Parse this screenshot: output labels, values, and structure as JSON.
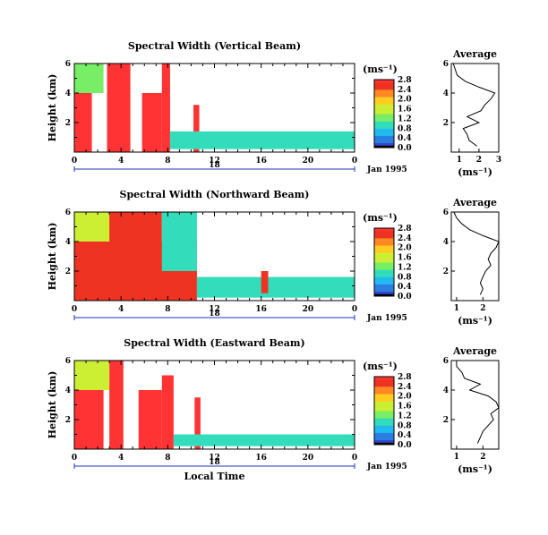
{
  "chart_data": [
    {
      "type": "heatmap",
      "title": "Spectral Width (Vertical Beam)",
      "ylabel": "Height (km)",
      "xlabel": "",
      "date_label": "18",
      "month_label": "Jan 1995",
      "x_ticks": [
        "0",
        "4",
        "8",
        "12",
        "16",
        "20",
        "0"
      ],
      "y_ticks": [
        "2",
        "4",
        "6"
      ],
      "xlim": [
        0,
        24
      ],
      "ylim": [
        0,
        6
      ],
      "colorbar": {
        "unit": "(ms⁻¹)",
        "ticks": [
          "0.0",
          "0.4",
          "0.8",
          "1.2",
          "1.6",
          "2.0",
          "2.4",
          "2.8"
        ],
        "range": [
          0,
          2.8
        ]
      },
      "cells": [
        {
          "x": [
            0,
            1.5
          ],
          "y": [
            0,
            4.0
          ],
          "value": 2.8
        },
        {
          "x": [
            0,
            2.5
          ],
          "y": [
            4.0,
            6.0
          ],
          "value": 1.3
        },
        {
          "x": [
            2.8,
            4.8
          ],
          "y": [
            0,
            6.0
          ],
          "value": 2.8
        },
        {
          "x": [
            5.8,
            7.5
          ],
          "y": [
            0,
            4.0
          ],
          "value": 2.8
        },
        {
          "x": [
            7.5,
            8.2
          ],
          "y": [
            0,
            6.0
          ],
          "value": 2.8
        },
        {
          "x": [
            10.2,
            10.7
          ],
          "y": [
            0,
            3.2
          ],
          "value": 2.8
        },
        {
          "x": [
            8.2,
            24
          ],
          "y": [
            0.2,
            1.4
          ],
          "value": 1.0
        }
      ],
      "average_profile": {
        "title": "Average",
        "xlabel": "(ms⁻¹)",
        "x_ticks": [
          "1",
          "2",
          "3"
        ],
        "xlim": [
          0.6,
          3.0
        ],
        "y_ticks": [
          "2",
          "4",
          "6"
        ],
        "ylim": [
          0,
          6
        ],
        "height_km": [
          0.4,
          0.8,
          1.2,
          1.6,
          2.0,
          2.4,
          2.8,
          3.2,
          3.6,
          4.0,
          4.4,
          4.8,
          5.2,
          5.6,
          6.0
        ],
        "width_ms": [
          1.9,
          1.5,
          1.4,
          1.2,
          2.0,
          1.4,
          2.1,
          2.3,
          2.6,
          2.8,
          2.0,
          1.3,
          0.9,
          0.8,
          0.7
        ]
      }
    },
    {
      "type": "heatmap",
      "title": "Spectral Width (Northward Beam)",
      "ylabel": "Height (km)",
      "xlabel": "",
      "date_label": "18",
      "month_label": "Jan 1995",
      "x_ticks": [
        "0",
        "4",
        "8",
        "12",
        "16",
        "20",
        "0"
      ],
      "y_ticks": [
        "2",
        "4",
        "6"
      ],
      "xlim": [
        0,
        24
      ],
      "ylim": [
        0,
        6
      ],
      "colorbar": {
        "unit": "(ms⁻¹)",
        "ticks": [
          "0.0",
          "0.4",
          "0.8",
          "1.2",
          "1.6",
          "2.0",
          "2.4",
          "2.8"
        ],
        "range": [
          0,
          2.8
        ]
      },
      "cells": [
        {
          "x": [
            0,
            10.5
          ],
          "y": [
            0,
            4.0
          ],
          "value": 2.4
        },
        {
          "x": [
            0,
            3.0
          ],
          "y": [
            4.0,
            6.0
          ],
          "value": 1.4
        },
        {
          "x": [
            3.0,
            7.5
          ],
          "y": [
            0,
            6.0
          ],
          "value": 2.6
        },
        {
          "x": [
            7.5,
            10.5
          ],
          "y": [
            2.0,
            6.0
          ],
          "value": 1.0
        },
        {
          "x": [
            10.5,
            24
          ],
          "y": [
            0.2,
            1.6
          ],
          "value": 1.0
        },
        {
          "x": [
            16.0,
            16.6
          ],
          "y": [
            0.5,
            2.0
          ],
          "value": 2.4
        }
      ],
      "average_profile": {
        "title": "Average",
        "xlabel": "(ms⁻¹)",
        "x_ticks": [
          "1",
          "2"
        ],
        "xlim": [
          0.8,
          2.6
        ],
        "y_ticks": [
          "2",
          "4",
          "6"
        ],
        "ylim": [
          0,
          6
        ],
        "height_km": [
          0.4,
          0.8,
          1.2,
          1.6,
          2.0,
          2.4,
          2.8,
          3.2,
          3.6,
          4.0,
          4.4,
          4.8,
          5.2,
          5.6,
          6.0
        ],
        "width_ms": [
          1.9,
          2.0,
          1.9,
          2.0,
          2.1,
          2.3,
          2.2,
          2.3,
          2.5,
          2.6,
          2.0,
          1.5,
          1.2,
          1.0,
          0.9
        ]
      }
    },
    {
      "type": "heatmap",
      "title": "Spectral Width (Eastward Beam)",
      "ylabel": "Height (km)",
      "xlabel": "Local Time",
      "date_label": "18",
      "month_label": "Jan 1995",
      "x_ticks": [
        "0",
        "4",
        "8",
        "12",
        "16",
        "20",
        "0"
      ],
      "y_ticks": [
        "2",
        "4",
        "6"
      ],
      "xlim": [
        0,
        24
      ],
      "ylim": [
        0,
        6
      ],
      "colorbar": {
        "unit": "(ms⁻¹)",
        "ticks": [
          "0.0",
          "0.4",
          "0.8",
          "1.2",
          "1.6",
          "2.0",
          "2.4",
          "2.8"
        ],
        "range": [
          0,
          2.8
        ]
      },
      "cells": [
        {
          "x": [
            0,
            2.5
          ],
          "y": [
            0,
            4.0
          ],
          "value": 2.8
        },
        {
          "x": [
            0,
            3.0
          ],
          "y": [
            4.0,
            6.0
          ],
          "value": 1.4
        },
        {
          "x": [
            3.0,
            4.2
          ],
          "y": [
            0,
            6.0
          ],
          "value": 2.8
        },
        {
          "x": [
            5.5,
            7.5
          ],
          "y": [
            0,
            4.0
          ],
          "value": 2.8
        },
        {
          "x": [
            7.5,
            8.5
          ],
          "y": [
            0,
            5.0
          ],
          "value": 2.8
        },
        {
          "x": [
            10.3,
            10.8
          ],
          "y": [
            0,
            3.5
          ],
          "value": 2.8
        },
        {
          "x": [
            8.5,
            24
          ],
          "y": [
            0.2,
            1.0
          ],
          "value": 0.9
        }
      ],
      "average_profile": {
        "title": "Average",
        "xlabel": "(ms⁻¹)",
        "x_ticks": [
          "1",
          "2"
        ],
        "xlim": [
          0.8,
          2.6
        ],
        "y_ticks": [
          "2",
          "4",
          "6"
        ],
        "ylim": [
          0,
          6
        ],
        "height_km": [
          0.4,
          0.8,
          1.2,
          1.6,
          2.0,
          2.4,
          2.8,
          3.2,
          3.6,
          4.0,
          4.4,
          4.8,
          5.2,
          5.6,
          6.0
        ],
        "width_ms": [
          1.8,
          1.9,
          2.0,
          2.2,
          2.4,
          2.3,
          2.6,
          2.5,
          2.2,
          1.5,
          1.9,
          1.3,
          1.2,
          1.0,
          1.0
        ]
      }
    }
  ],
  "colormap": [
    "#000000",
    "#3344cc",
    "#2a7fe0",
    "#22bbee",
    "#33ddbb",
    "#77ee66",
    "#ccee33",
    "#ffcc22",
    "#ff8822",
    "#ee3322",
    "#ff3333"
  ]
}
